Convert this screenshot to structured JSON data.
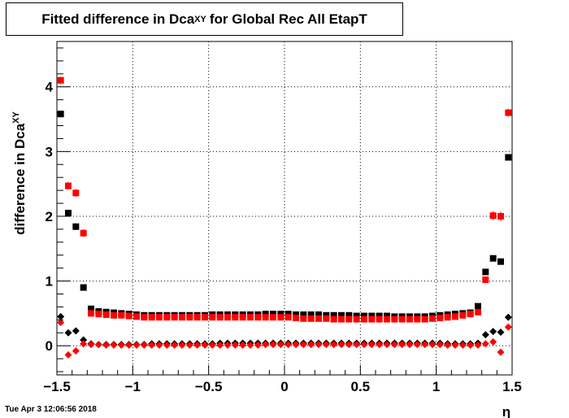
{
  "chart_data": {
    "type": "scatter",
    "title": {
      "main": "Fitted difference in Dca",
      "sub": "XY",
      "rest": "for Global Rec All EtapT"
    },
    "xlabel": "η",
    "ylabel": {
      "main": "difference in Dca",
      "sub": "XY"
    },
    "xlim": [
      -1.5,
      1.5
    ],
    "ylim": [
      -0.45,
      4.7
    ],
    "x_ticks": [
      -1.5,
      -1,
      -0.5,
      0,
      0.5,
      1,
      1.5
    ],
    "x_tick_labels": [
      "−1.5",
      "−1",
      "−0.5",
      "0",
      "0.5",
      "1",
      "1.5"
    ],
    "y_ticks": [
      0,
      1,
      2,
      3,
      4
    ],
    "y_tick_labels": [
      "0",
      "1",
      "2",
      "3",
      "4"
    ],
    "grid": true,
    "series": [
      {
        "marker": "square",
        "color": "#000000",
        "x": [
          -1.475,
          -1.425,
          -1.375,
          -1.325,
          -1.275,
          -1.225,
          -1.175,
          -1.125,
          -1.075,
          -1.025,
          -0.975,
          -0.925,
          -0.875,
          -0.825,
          -0.775,
          -0.725,
          -0.675,
          -0.625,
          -0.575,
          -0.525,
          -0.475,
          -0.425,
          -0.375,
          -0.325,
          -0.275,
          -0.225,
          -0.175,
          -0.125,
          -0.075,
          -0.025,
          0.025,
          0.075,
          0.125,
          0.175,
          0.225,
          0.275,
          0.325,
          0.375,
          0.425,
          0.475,
          0.525,
          0.575,
          0.625,
          0.675,
          0.725,
          0.775,
          0.825,
          0.875,
          0.925,
          0.975,
          1.025,
          1.075,
          1.125,
          1.175,
          1.225,
          1.275,
          1.325,
          1.375,
          1.425,
          1.475
        ],
        "y": [
          3.58,
          2.05,
          1.84,
          0.9,
          0.57,
          0.53,
          0.52,
          0.51,
          0.5,
          0.49,
          0.48,
          0.47,
          0.47,
          0.47,
          0.47,
          0.47,
          0.47,
          0.47,
          0.47,
          0.47,
          0.48,
          0.48,
          0.48,
          0.48,
          0.48,
          0.48,
          0.48,
          0.49,
          0.49,
          0.49,
          0.49,
          0.48,
          0.48,
          0.48,
          0.48,
          0.47,
          0.47,
          0.47,
          0.47,
          0.46,
          0.46,
          0.46,
          0.46,
          0.46,
          0.45,
          0.45,
          0.45,
          0.45,
          0.45,
          0.46,
          0.47,
          0.48,
          0.49,
          0.5,
          0.51,
          0.61,
          1.14,
          1.35,
          1.3,
          2.91
        ],
        "err": [
          0.05,
          0.05,
          0.05,
          0.03,
          0.02,
          0.01,
          0.01,
          0.01,
          0.01,
          0.01,
          0.01,
          0.01,
          0.01,
          0.01,
          0.01,
          0.01,
          0.01,
          0.01,
          0.01,
          0.01,
          0.01,
          0.01,
          0.01,
          0.01,
          0.01,
          0.01,
          0.01,
          0.01,
          0.01,
          0.01,
          0.01,
          0.01,
          0.01,
          0.01,
          0.01,
          0.01,
          0.01,
          0.01,
          0.01,
          0.01,
          0.01,
          0.01,
          0.01,
          0.01,
          0.01,
          0.01,
          0.01,
          0.01,
          0.01,
          0.01,
          0.01,
          0.01,
          0.01,
          0.01,
          0.01,
          0.02,
          0.04,
          0.04,
          0.04,
          0.05
        ]
      },
      {
        "marker": "square",
        "color": "#ff0000",
        "x": [
          -1.475,
          -1.425,
          -1.375,
          -1.325,
          -1.275,
          -1.225,
          -1.175,
          -1.125,
          -1.075,
          -1.025,
          -0.975,
          -0.925,
          -0.875,
          -0.825,
          -0.775,
          -0.725,
          -0.675,
          -0.625,
          -0.575,
          -0.525,
          -0.475,
          -0.425,
          -0.375,
          -0.325,
          -0.275,
          -0.225,
          -0.175,
          -0.125,
          -0.075,
          -0.025,
          0.025,
          0.075,
          0.125,
          0.175,
          0.225,
          0.275,
          0.325,
          0.375,
          0.425,
          0.475,
          0.525,
          0.575,
          0.625,
          0.675,
          0.725,
          0.775,
          0.825,
          0.875,
          0.925,
          0.975,
          1.025,
          1.075,
          1.125,
          1.175,
          1.225,
          1.275,
          1.325,
          1.375,
          1.425,
          1.475
        ],
        "y": [
          4.1,
          2.47,
          2.36,
          1.74,
          0.5,
          0.49,
          0.48,
          0.47,
          0.47,
          0.46,
          0.45,
          0.44,
          0.44,
          0.44,
          0.44,
          0.44,
          0.44,
          0.44,
          0.44,
          0.44,
          0.44,
          0.44,
          0.44,
          0.44,
          0.44,
          0.44,
          0.44,
          0.44,
          0.44,
          0.44,
          0.44,
          0.43,
          0.42,
          0.42,
          0.42,
          0.42,
          0.41,
          0.41,
          0.41,
          0.41,
          0.41,
          0.41,
          0.41,
          0.41,
          0.41,
          0.41,
          0.41,
          0.41,
          0.41,
          0.42,
          0.43,
          0.44,
          0.45,
          0.47,
          0.49,
          0.52,
          1.02,
          2.01,
          2.0,
          3.6
        ],
        "err": [
          0.06,
          0.06,
          0.06,
          0.06,
          0.02,
          0.01,
          0.01,
          0.01,
          0.01,
          0.01,
          0.01,
          0.01,
          0.01,
          0.01,
          0.01,
          0.01,
          0.01,
          0.01,
          0.01,
          0.01,
          0.01,
          0.01,
          0.01,
          0.01,
          0.01,
          0.01,
          0.01,
          0.01,
          0.01,
          0.01,
          0.01,
          0.01,
          0.01,
          0.01,
          0.01,
          0.01,
          0.01,
          0.01,
          0.01,
          0.01,
          0.01,
          0.01,
          0.01,
          0.01,
          0.01,
          0.01,
          0.01,
          0.01,
          0.01,
          0.01,
          0.01,
          0.01,
          0.01,
          0.01,
          0.01,
          0.02,
          0.04,
          0.07,
          0.07,
          0.06
        ]
      },
      {
        "marker": "diamond",
        "color": "#000000",
        "x": [
          -1.475,
          -1.425,
          -1.375,
          -1.325,
          -1.275,
          -1.225,
          -1.175,
          -1.125,
          -1.075,
          -1.025,
          -0.975,
          -0.925,
          -0.875,
          -0.825,
          -0.775,
          -0.725,
          -0.675,
          -0.625,
          -0.575,
          -0.525,
          -0.475,
          -0.425,
          -0.375,
          -0.325,
          -0.275,
          -0.225,
          -0.175,
          -0.125,
          -0.075,
          -0.025,
          0.025,
          0.075,
          0.125,
          0.175,
          0.225,
          0.275,
          0.325,
          0.375,
          0.425,
          0.475,
          0.525,
          0.575,
          0.625,
          0.675,
          0.725,
          0.775,
          0.825,
          0.875,
          0.925,
          0.975,
          1.025,
          1.075,
          1.125,
          1.175,
          1.225,
          1.275,
          1.325,
          1.375,
          1.425,
          1.475
        ],
        "y": [
          0.45,
          0.2,
          0.23,
          0.09,
          0.03,
          0.02,
          0.02,
          0.02,
          0.02,
          0.02,
          0.02,
          0.02,
          0.03,
          0.03,
          0.03,
          0.03,
          0.03,
          0.03,
          0.03,
          0.03,
          0.03,
          0.04,
          0.04,
          0.04,
          0.04,
          0.04,
          0.04,
          0.04,
          0.04,
          0.04,
          0.04,
          0.04,
          0.04,
          0.04,
          0.04,
          0.04,
          0.04,
          0.04,
          0.04,
          0.04,
          0.04,
          0.04,
          0.04,
          0.04,
          0.04,
          0.04,
          0.04,
          0.04,
          0.04,
          0.04,
          0.04,
          0.03,
          0.03,
          0.03,
          0.03,
          0.04,
          0.17,
          0.22,
          0.21,
          0.44
        ],
        "err": [
          0.04,
          0.03,
          0.03,
          0.02,
          0.01,
          0.01,
          0.01,
          0.01,
          0.01,
          0.01,
          0.01,
          0.01,
          0.01,
          0.01,
          0.01,
          0.01,
          0.01,
          0.01,
          0.01,
          0.01,
          0.01,
          0.01,
          0.01,
          0.01,
          0.01,
          0.01,
          0.01,
          0.01,
          0.01,
          0.01,
          0.01,
          0.01,
          0.01,
          0.01,
          0.01,
          0.01,
          0.01,
          0.01,
          0.01,
          0.01,
          0.01,
          0.01,
          0.01,
          0.01,
          0.01,
          0.01,
          0.01,
          0.01,
          0.01,
          0.01,
          0.01,
          0.01,
          0.01,
          0.01,
          0.01,
          0.01,
          0.02,
          0.03,
          0.03,
          0.04
        ]
      },
      {
        "marker": "diamond",
        "color": "#ff0000",
        "x": [
          -1.475,
          -1.425,
          -1.375,
          -1.325,
          -1.275,
          -1.225,
          -1.175,
          -1.125,
          -1.075,
          -1.025,
          -0.975,
          -0.925,
          -0.875,
          -0.825,
          -0.775,
          -0.725,
          -0.675,
          -0.625,
          -0.575,
          -0.525,
          -0.475,
          -0.425,
          -0.375,
          -0.325,
          -0.275,
          -0.225,
          -0.175,
          -0.125,
          -0.075,
          -0.025,
          0.025,
          0.075,
          0.125,
          0.175,
          0.225,
          0.275,
          0.325,
          0.375,
          0.425,
          0.475,
          0.525,
          0.575,
          0.625,
          0.675,
          0.725,
          0.775,
          0.825,
          0.875,
          0.925,
          0.975,
          1.025,
          1.075,
          1.125,
          1.175,
          1.225,
          1.275,
          1.325,
          1.375,
          1.425,
          1.475
        ],
        "y": [
          0.36,
          -0.14,
          -0.08,
          0.03,
          0.02,
          0.02,
          0.01,
          0.01,
          0.01,
          0.01,
          0.01,
          0.01,
          0.01,
          0.01,
          0.01,
          0.01,
          0.01,
          0.01,
          0.01,
          0.01,
          0.01,
          0.01,
          0.01,
          0.01,
          0.01,
          0.01,
          0.01,
          0.02,
          0.02,
          0.02,
          0.02,
          0.02,
          0.02,
          0.02,
          0.02,
          0.02,
          0.02,
          0.02,
          0.02,
          0.02,
          0.02,
          0.02,
          0.02,
          0.02,
          0.02,
          0.02,
          0.02,
          0.02,
          0.02,
          0.02,
          0.02,
          0.01,
          0.01,
          0.01,
          0.01,
          0.01,
          0.03,
          0.06,
          -0.1,
          0.29
        ],
        "err": [
          0.05,
          0.04,
          0.04,
          0.02,
          0.01,
          0.01,
          0.01,
          0.01,
          0.01,
          0.01,
          0.01,
          0.01,
          0.01,
          0.01,
          0.01,
          0.01,
          0.01,
          0.01,
          0.01,
          0.01,
          0.01,
          0.01,
          0.01,
          0.01,
          0.01,
          0.01,
          0.01,
          0.01,
          0.01,
          0.01,
          0.01,
          0.01,
          0.01,
          0.01,
          0.01,
          0.01,
          0.01,
          0.01,
          0.01,
          0.01,
          0.01,
          0.01,
          0.01,
          0.01,
          0.01,
          0.01,
          0.01,
          0.01,
          0.01,
          0.01,
          0.01,
          0.01,
          0.01,
          0.01,
          0.01,
          0.01,
          0.03,
          0.04,
          0.04,
          0.05
        ]
      }
    ]
  },
  "timestamp": "Tue Apr  3 12:06:56 2018"
}
